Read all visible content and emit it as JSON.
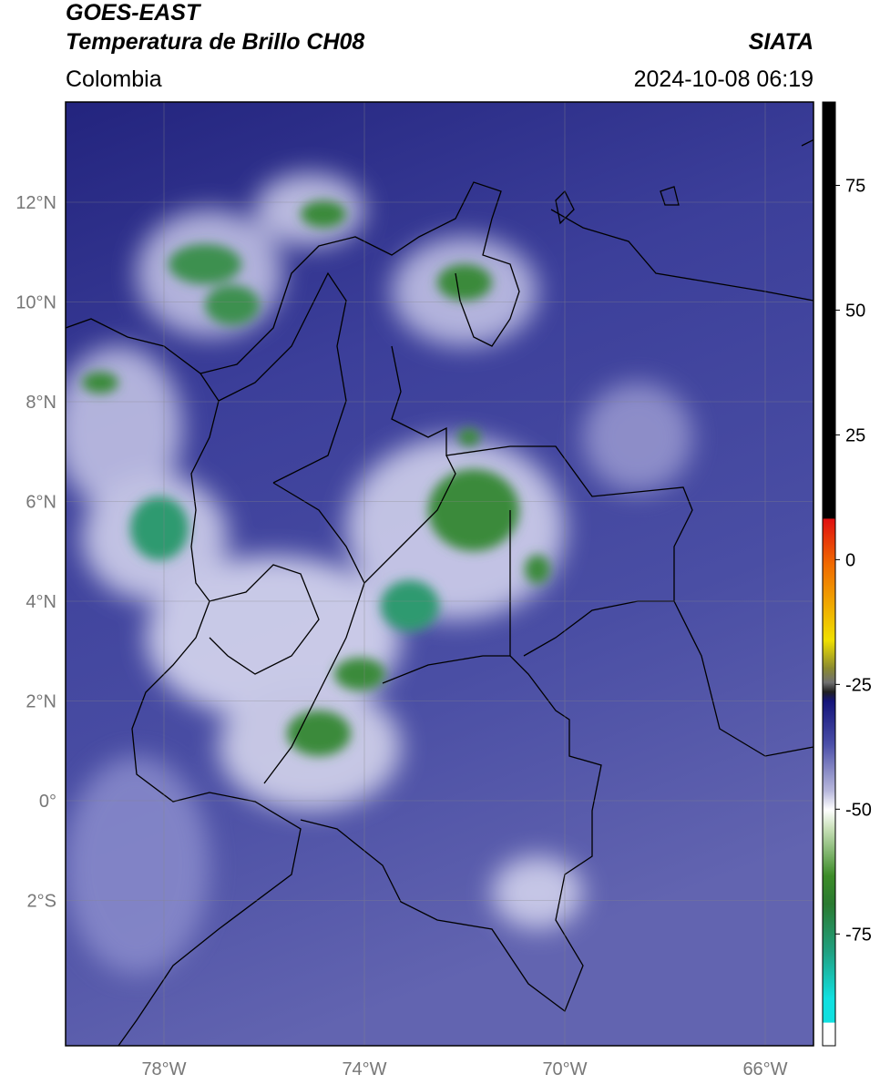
{
  "header": {
    "title": "GOES-EAST",
    "subtitle": "Temperatura de Brillo CH08",
    "source": "SIATA",
    "region": "Colombia",
    "datetime": "2024-10-08 06:19"
  },
  "map": {
    "lat_labels": [
      "12°N",
      "10°N",
      "8°N",
      "6°N",
      "4°N",
      "2°N",
      "0°",
      "2°S"
    ],
    "lon_labels": [
      "78°W",
      "74°W",
      "70°W",
      "66°W"
    ]
  },
  "colorbar": {
    "ylim": [
      -97.4,
      91.7
    ],
    "yticks": [
      75,
      50,
      25,
      0,
      -25,
      -50,
      -75
    ]
  }
}
